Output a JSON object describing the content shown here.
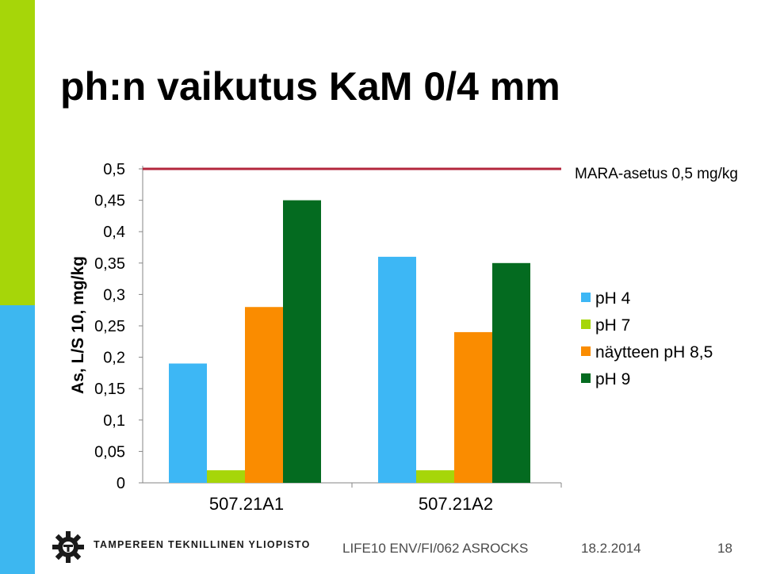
{
  "slide": {
    "title": "ph:n vaikutus KaM 0/4 mm",
    "accent_green": "#a6d609",
    "accent_blue": "#3db7f0"
  },
  "footer": {
    "org_name": "TAMPEREEN TEKNILLINEN YLIOPISTO",
    "logo_icon": "tut-gear-logo-icon",
    "project": "LIFE10 ENV/FI/062 ASROCKS",
    "date": "18.2.2014",
    "page_number": "18"
  },
  "chart_data": {
    "type": "bar",
    "title": "",
    "xlabel": "",
    "ylabel": "As, L/S 10, mg/kg",
    "ylim": [
      0,
      0.5
    ],
    "yticks": [
      "0",
      "0,05",
      "0,1",
      "0,15",
      "0,2",
      "0,25",
      "0,3",
      "0,35",
      "0,4",
      "0,45",
      "0,5"
    ],
    "categories": [
      "507.21A1",
      "507.21A2"
    ],
    "series": [
      {
        "name": "pH 4",
        "color": "#3db7f5",
        "values": [
          0.19,
          0.36
        ]
      },
      {
        "name": "pH 7",
        "color": "#a6d609",
        "values": [
          0.02,
          0.02
        ]
      },
      {
        "name": "näytteen pH 8,5",
        "color": "#fa8c00",
        "values": [
          0.28,
          0.24
        ]
      },
      {
        "name": "pH 9",
        "color": "#046b20",
        "values": [
          0.45,
          0.35
        ]
      }
    ],
    "reference_line": {
      "value": 0.5,
      "label": "MARA-asetus 0,5 mg/kg",
      "color": "#b3263c"
    },
    "legend_position": "right",
    "grid": false
  }
}
